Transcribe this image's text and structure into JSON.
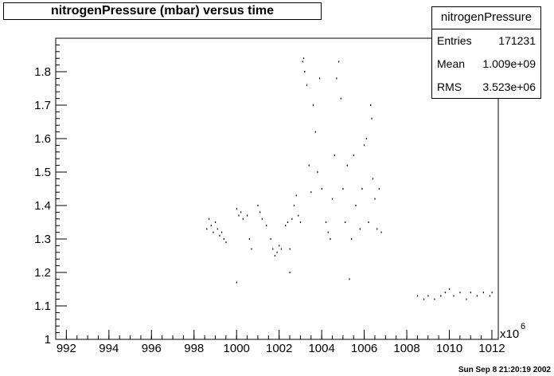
{
  "chart_data": {
    "type": "scatter",
    "title": "nitrogenPressure (mbar) versus time",
    "xlabel": "",
    "ylabel": "",
    "x_multiplier_label": "x10",
    "x_multiplier_exponent": "6",
    "xlim": [
      991.5,
      1012.3
    ],
    "ylim": [
      1.0,
      1.9
    ],
    "x_ticks": [
      992,
      994,
      996,
      998,
      1000,
      1002,
      1004,
      1006,
      1008,
      1010,
      1012
    ],
    "y_ticks": [
      1,
      1.1,
      1.2,
      1.3,
      1.4,
      1.5,
      1.6,
      1.7,
      1.8
    ],
    "grid": false,
    "series": [
      {
        "values": [
          [
            998.6,
            1.33
          ],
          [
            998.7,
            1.36
          ],
          [
            998.8,
            1.34
          ],
          [
            998.9,
            1.32
          ],
          [
            999.0,
            1.35
          ],
          [
            999.1,
            1.33
          ],
          [
            999.2,
            1.31
          ],
          [
            999.3,
            1.32
          ],
          [
            999.4,
            1.3
          ],
          [
            999.5,
            1.29
          ],
          [
            1000.0,
            1.39
          ],
          [
            1000.1,
            1.37
          ],
          [
            1000.2,
            1.38
          ],
          [
            1000.3,
            1.36
          ],
          [
            1000.5,
            1.37
          ],
          [
            1000.6,
            1.3
          ],
          [
            1000.7,
            1.27
          ],
          [
            1000.0,
            1.17
          ],
          [
            1001.0,
            1.4
          ],
          [
            1001.1,
            1.38
          ],
          [
            1001.2,
            1.36
          ],
          [
            1001.4,
            1.34
          ],
          [
            1001.6,
            1.3
          ],
          [
            1001.7,
            1.27
          ],
          [
            1001.8,
            1.25
          ],
          [
            1001.9,
            1.26
          ],
          [
            1002.0,
            1.28
          ],
          [
            1002.1,
            1.27
          ],
          [
            1002.3,
            1.34
          ],
          [
            1002.4,
            1.35
          ],
          [
            1002.5,
            1.27
          ],
          [
            1002.5,
            1.2
          ],
          [
            1002.6,
            1.36
          ],
          [
            1002.7,
            1.4
          ],
          [
            1002.8,
            1.43
          ],
          [
            1002.9,
            1.37
          ],
          [
            1003.0,
            1.35
          ],
          [
            1003.1,
            1.83
          ],
          [
            1003.15,
            1.84
          ],
          [
            1003.2,
            1.8
          ],
          [
            1003.3,
            1.76
          ],
          [
            1003.4,
            1.52
          ],
          [
            1003.5,
            1.44
          ],
          [
            1003.6,
            1.7
          ],
          [
            1003.7,
            1.62
          ],
          [
            1003.8,
            1.5
          ],
          [
            1003.9,
            1.78
          ],
          [
            1004.0,
            1.45
          ],
          [
            1004.2,
            1.35
          ],
          [
            1004.3,
            1.32
          ],
          [
            1004.4,
            1.3
          ],
          [
            1004.5,
            1.42
          ],
          [
            1004.6,
            1.55
          ],
          [
            1004.7,
            1.78
          ],
          [
            1004.8,
            1.83
          ],
          [
            1004.9,
            1.72
          ],
          [
            1005.0,
            1.45
          ],
          [
            1005.1,
            1.35
          ],
          [
            1005.2,
            1.52
          ],
          [
            1005.3,
            1.18
          ],
          [
            1005.4,
            1.3
          ],
          [
            1005.5,
            1.55
          ],
          [
            1005.6,
            1.4
          ],
          [
            1005.8,
            1.33
          ],
          [
            1005.9,
            1.45
          ],
          [
            1006.0,
            1.58
          ],
          [
            1006.1,
            1.6
          ],
          [
            1006.2,
            1.35
          ],
          [
            1006.3,
            1.7
          ],
          [
            1006.35,
            1.66
          ],
          [
            1006.4,
            1.48
          ],
          [
            1006.5,
            1.42
          ],
          [
            1006.6,
            1.33
          ],
          [
            1006.7,
            1.45
          ],
          [
            1006.8,
            1.32
          ],
          [
            1008.5,
            1.13
          ],
          [
            1008.8,
            1.12
          ],
          [
            1009.0,
            1.13
          ],
          [
            1009.3,
            1.12
          ],
          [
            1009.6,
            1.13
          ],
          [
            1009.8,
            1.14
          ],
          [
            1010.0,
            1.15
          ],
          [
            1010.2,
            1.13
          ],
          [
            1010.5,
            1.14
          ],
          [
            1010.8,
            1.12
          ],
          [
            1011.0,
            1.14
          ],
          [
            1011.3,
            1.13
          ],
          [
            1011.6,
            1.14
          ],
          [
            1011.9,
            1.13
          ],
          [
            1012.0,
            1.14
          ]
        ]
      }
    ]
  },
  "stats": {
    "name": "nitrogenPressure",
    "rows": [
      {
        "label": "Entries",
        "value": "171231"
      },
      {
        "label": "Mean",
        "value": "1.009e+09"
      },
      {
        "label": "RMS",
        "value": "3.523e+06"
      }
    ]
  },
  "footer": "Sun Sep  8 21:20:19 2002"
}
